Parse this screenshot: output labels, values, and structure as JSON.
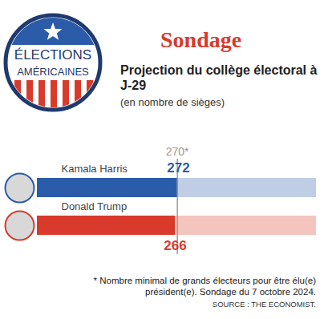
{
  "chart_data": {
    "type": "bar",
    "orientation": "horizontal",
    "badge": "ÉLECTIONS AMÉRICAINES",
    "title": "Sondage",
    "subtitle": "Projection du collège électoral à J-29",
    "x_label": "(en nombre de sièges)",
    "categories": [
      "Kamala Harris",
      "Donald Trump"
    ],
    "values": [
      272,
      266
    ],
    "colors": [
      "#2a5caa",
      "#d93a2b"
    ],
    "xlim": [
      0,
      538
    ],
    "tick_labels": false,
    "data_labels": true,
    "annotations": [
      {
        "value": 270,
        "label": "270*"
      }
    ],
    "note": "* Nombre minimal de grands électeurs pour être élu(e) président(e). Sondage du 7 octobre 2024.",
    "source": "SOURCE : THE ECONOMIST."
  }
}
